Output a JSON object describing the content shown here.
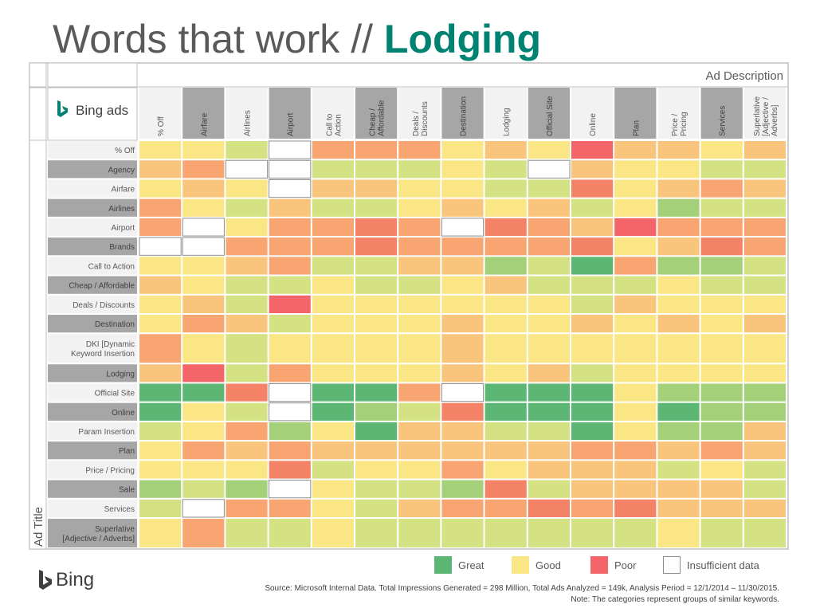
{
  "slide": {
    "title_prefix": "Words that work // ",
    "title_highlight": "Lodging",
    "brand_text": "Bing",
    "source_line1": "Source: Microsoft Internal Data. Total Impressions Generated = 298 Million, Total Ads Analyzed = 149k, Analysis Period = 12/1/2014 – 11/30/2015.",
    "source_line2": "Note: The categories represent groups of similar keywords."
  },
  "chart_data": {
    "type": "heatmap",
    "brand_label": "Bing ads",
    "column_axis_label": "Ad Description",
    "row_axis_label": "Ad Title",
    "columns": [
      "% Off",
      "Airfare",
      "Airlines",
      "Airport",
      "Call to\nAction",
      "Cheap /\nAffordable",
      "Deals /\nDiscounts",
      "Destination",
      "Lodging",
      "Official Site",
      "Online",
      "Plan",
      "Price /\nPricing",
      "Services",
      "Superlative\n[Adjective /\nAdverbs]"
    ],
    "rows": [
      "% Off",
      "Agency",
      "Airfare",
      "Airlines",
      "Airport",
      "Brands",
      "Call to Action",
      "Cheap / Affordable",
      "Deals / Discounts",
      "Destination",
      "DKI [Dynamic\nKeyword Insertion",
      "Lodging",
      "Official Site",
      "Online",
      "Param Insertion",
      "Plan",
      "Price / Pricing",
      "Sale",
      "Services",
      "Superlative\n[Adjective / Adverbs]"
    ],
    "scale": {
      "great": "#5cb774",
      "fair_great": "#a4d07a",
      "fair": "#d4e283",
      "good": "#fbe685",
      "mid": "#f9c57c",
      "weak": "#f8a571",
      "poor_mid": "#f38266",
      "poor": "#f4656a",
      "insufficient": "#ffffff"
    },
    "values": [
      [
        "good",
        "good",
        "fair",
        "na",
        "weak",
        "weak",
        "weak",
        "good",
        "mid",
        "good",
        "poor",
        "mid",
        "mid",
        "good",
        "mid"
      ],
      [
        "mid",
        "weak",
        "na",
        "na",
        "fair",
        "fair",
        "fair",
        "good",
        "fair",
        "na",
        "mid",
        "good",
        "good",
        "fair",
        "fair"
      ],
      [
        "good",
        "mid",
        "good",
        "na",
        "mid",
        "mid",
        "good",
        "good",
        "fair",
        "fair",
        "poor_mid",
        "good",
        "mid",
        "weak",
        "mid"
      ],
      [
        "weak",
        "good",
        "fair",
        "mid",
        "fair",
        "fair",
        "good",
        "mid",
        "good",
        "mid",
        "fair",
        "good",
        "fair_great",
        "fair",
        "fair"
      ],
      [
        "weak",
        "na",
        "good",
        "weak",
        "weak",
        "poor_mid",
        "weak",
        "na",
        "poor_mid",
        "weak",
        "mid",
        "poor",
        "weak",
        "weak",
        "weak"
      ],
      [
        "na",
        "na",
        "weak",
        "weak",
        "weak",
        "poor_mid",
        "weak",
        "weak",
        "weak",
        "weak",
        "poor_mid",
        "good",
        "mid",
        "poor_mid",
        "weak"
      ],
      [
        "good",
        "good",
        "mid",
        "weak",
        "fair",
        "fair",
        "mid",
        "mid",
        "fair_great",
        "fair",
        "great",
        "weak",
        "fair_great",
        "fair_great",
        "fair"
      ],
      [
        "mid",
        "good",
        "fair",
        "fair",
        "good",
        "fair",
        "fair",
        "good",
        "mid",
        "fair",
        "fair",
        "fair",
        "good",
        "fair",
        "fair"
      ],
      [
        "good",
        "mid",
        "fair",
        "poor",
        "good",
        "good",
        "good",
        "good",
        "good",
        "good",
        "fair",
        "mid",
        "good",
        "good",
        "good"
      ],
      [
        "good",
        "weak",
        "mid",
        "fair",
        "good",
        "good",
        "good",
        "mid",
        "good",
        "good",
        "mid",
        "good",
        "mid",
        "good",
        "mid"
      ],
      [
        "weak",
        "good",
        "fair",
        "good",
        "good",
        "good",
        "good",
        "mid",
        "good",
        "good",
        "good",
        "good",
        "good",
        "good",
        "good"
      ],
      [
        "mid",
        "poor",
        "fair",
        "weak",
        "good",
        "good",
        "good",
        "mid",
        "good",
        "mid",
        "fair",
        "good",
        "good",
        "good",
        "good"
      ],
      [
        "great",
        "great",
        "poor_mid",
        "na",
        "great",
        "great",
        "weak",
        "na",
        "great",
        "great",
        "great",
        "good",
        "fair_great",
        "fair_great",
        "fair_great"
      ],
      [
        "great",
        "good",
        "fair",
        "na",
        "great",
        "fair_great",
        "fair",
        "poor_mid",
        "great",
        "great",
        "great",
        "good",
        "great",
        "fair_great",
        "fair_great"
      ],
      [
        "fair",
        "good",
        "weak",
        "fair_great",
        "good",
        "great",
        "mid",
        "mid",
        "fair",
        "fair",
        "great",
        "good",
        "fair_great",
        "fair_great",
        "mid"
      ],
      [
        "good",
        "weak",
        "mid",
        "weak",
        "mid",
        "mid",
        "mid",
        "mid",
        "mid",
        "mid",
        "weak",
        "weak",
        "mid",
        "weak",
        "mid"
      ],
      [
        "good",
        "good",
        "good",
        "poor_mid",
        "fair",
        "good",
        "good",
        "weak",
        "good",
        "mid",
        "mid",
        "mid",
        "fair",
        "good",
        "fair"
      ],
      [
        "fair_great",
        "fair",
        "fair_great",
        "na",
        "good",
        "fair",
        "fair",
        "fair_great",
        "poor_mid",
        "fair",
        "mid",
        "mid",
        "mid",
        "mid",
        "fair"
      ],
      [
        "fair",
        "na",
        "weak",
        "weak",
        "good",
        "fair",
        "mid",
        "weak",
        "weak",
        "poor_mid",
        "weak",
        "poor_mid",
        "mid",
        "mid",
        "mid"
      ],
      [
        "good",
        "weak",
        "fair",
        "fair",
        "good",
        "fair",
        "fair",
        "fair",
        "fair",
        "fair",
        "fair",
        "fair",
        "good",
        "fair",
        "fair"
      ]
    ],
    "legend": [
      {
        "label": "Great",
        "color": "#5cb774"
      },
      {
        "label": "Good",
        "color": "#fbe685"
      },
      {
        "label": "Poor",
        "color": "#f4656a"
      },
      {
        "label": "Insufficient data",
        "color": "#ffffff"
      }
    ]
  }
}
